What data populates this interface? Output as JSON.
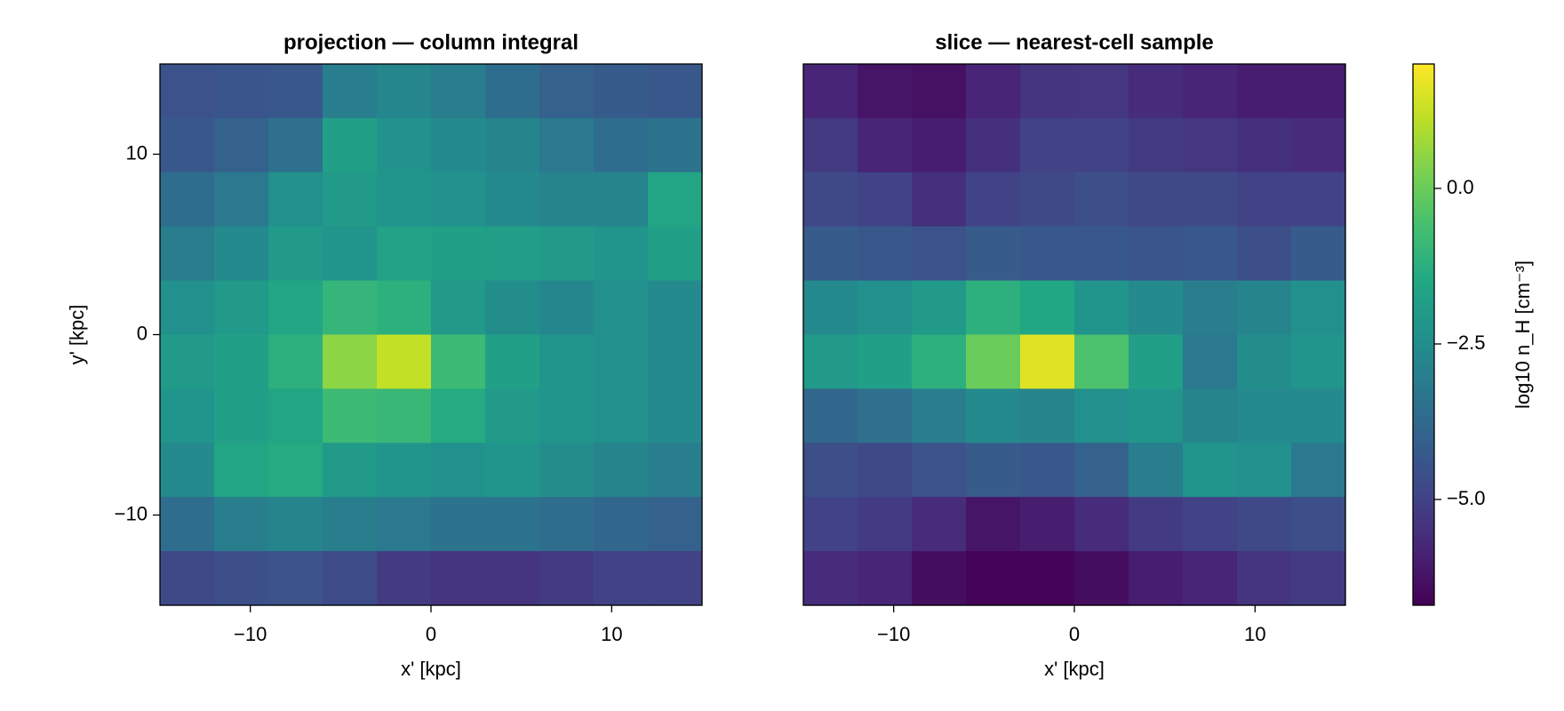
{
  "chart_data": [
    {
      "type": "heatmap",
      "title": "projection — column integral",
      "xlabel": "x' [kpc]",
      "ylabel": "y' [kpc]",
      "xlim": [
        -15,
        15
      ],
      "ylim": [
        -15,
        15
      ],
      "xticks": [
        {
          "value": -10,
          "label": "−10"
        },
        0,
        10
      ],
      "yticks": [
        {
          "value": -10,
          "label": "−10"
        },
        0,
        10
      ],
      "z": [
        [
          -4.5,
          -4.4,
          -4.3,
          -3.0,
          -2.7,
          -3.0,
          -3.6,
          -4.0,
          -4.2,
          -4.3
        ],
        [
          -4.3,
          -4.0,
          -3.5,
          -1.8,
          -2.3,
          -2.6,
          -2.8,
          -3.2,
          -3.6,
          -3.4
        ],
        [
          -3.6,
          -3.2,
          -2.4,
          -2.0,
          -2.2,
          -2.3,
          -2.6,
          -2.8,
          -2.8,
          -1.6
        ],
        [
          -3.0,
          -2.6,
          -2.0,
          -2.2,
          -1.7,
          -1.8,
          -1.9,
          -2.0,
          -2.2,
          -1.8
        ],
        [
          -2.4,
          -2.0,
          -1.6,
          -1.0,
          -1.2,
          -2.0,
          -2.5,
          -2.7,
          -2.4,
          -2.6
        ],
        [
          -2.0,
          -1.8,
          -1.2,
          0.5,
          1.2,
          -0.8,
          -1.8,
          -2.2,
          -2.4,
          -2.6
        ],
        [
          -2.2,
          -1.8,
          -1.6,
          -0.8,
          -0.9,
          -1.4,
          -2.0,
          -2.2,
          -2.4,
          -2.6
        ],
        [
          -2.6,
          -1.6,
          -1.4,
          -2.0,
          -2.2,
          -2.4,
          -2.2,
          -2.5,
          -2.8,
          -3.0
        ],
        [
          -3.6,
          -3.0,
          -2.8,
          -3.0,
          -3.2,
          -3.4,
          -3.4,
          -3.6,
          -3.8,
          -4.0
        ],
        [
          -4.8,
          -4.6,
          -4.5,
          -4.7,
          -5.2,
          -5.4,
          -5.4,
          -5.2,
          -5.0,
          -5.0
        ]
      ]
    },
    {
      "type": "heatmap",
      "title": "slice — nearest-cell sample",
      "xlabel": "x' [kpc]",
      "xlim": [
        -15,
        15
      ],
      "ylim": [
        -15,
        15
      ],
      "xticks": [
        {
          "value": -10,
          "label": "−10"
        },
        0,
        10
      ],
      "z": [
        [
          -5.8,
          -6.2,
          -6.3,
          -5.8,
          -5.4,
          -5.3,
          -5.6,
          -5.8,
          -6.0,
          -6.0
        ],
        [
          -5.2,
          -5.8,
          -6.0,
          -5.5,
          -5.0,
          -5.0,
          -5.2,
          -5.3,
          -5.5,
          -5.6
        ],
        [
          -4.8,
          -5.0,
          -5.5,
          -5.0,
          -4.8,
          -4.6,
          -4.8,
          -4.8,
          -5.0,
          -5.0
        ],
        [
          -4.2,
          -4.3,
          -4.5,
          -4.2,
          -4.3,
          -4.3,
          -4.4,
          -4.3,
          -4.6,
          -4.2
        ],
        [
          -2.6,
          -2.4,
          -2.0,
          -1.2,
          -1.5,
          -2.2,
          -2.6,
          -3.0,
          -2.8,
          -2.4
        ],
        [
          -2.0,
          -1.8,
          -1.2,
          0.0,
          1.6,
          -0.5,
          -1.8,
          -3.2,
          -2.5,
          -2.2
        ],
        [
          -3.8,
          -3.5,
          -3.0,
          -2.6,
          -2.8,
          -2.4,
          -2.2,
          -2.8,
          -2.6,
          -2.6
        ],
        [
          -4.6,
          -4.8,
          -4.5,
          -4.2,
          -4.3,
          -4.0,
          -3.0,
          -2.2,
          -2.4,
          -3.2
        ],
        [
          -5.0,
          -5.2,
          -5.6,
          -6.2,
          -6.0,
          -5.6,
          -5.2,
          -5.0,
          -4.8,
          -4.6
        ],
        [
          -5.6,
          -5.8,
          -6.4,
          -6.6,
          -6.6,
          -6.4,
          -6.0,
          -5.8,
          -5.4,
          -5.2
        ]
      ]
    }
  ],
  "colorbar": {
    "label": "log10 n_H [cm⁻³]",
    "colormap": "viridis",
    "clim": [
      -6.7,
      2.0
    ],
    "ticks": [
      {
        "value": 0,
        "label": "0.0"
      },
      {
        "value": -2.5,
        "label": "−2.5"
      },
      {
        "value": -5,
        "label": "−5.0"
      }
    ]
  }
}
